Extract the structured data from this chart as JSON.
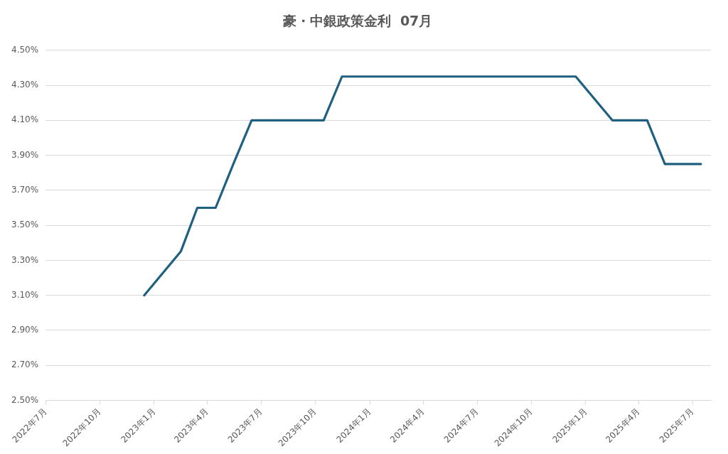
{
  "chart_data": {
    "type": "line",
    "title": "豪・中銀政策金利  07月",
    "x": [
      "2022-12-15",
      "2023-02-15",
      "2023-03-15",
      "2023-04-15",
      "2023-05-15",
      "2023-06-15",
      "2023-10-15",
      "2023-11-15",
      "2024-12-15",
      "2025-02-15",
      "2025-04-15",
      "2025-05-15",
      "2025-07-15"
    ],
    "series": [
      {
        "color": "#1f5f80",
        "values": [
          3.1,
          3.35,
          3.6,
          3.6,
          3.85,
          4.1,
          4.1,
          4.35,
          4.35,
          4.1,
          4.1,
          3.85,
          3.85
        ]
      }
    ],
    "xlim": [
      "2022-07",
      "2025-08"
    ],
    "xticks": [
      {
        "value": "2022-07",
        "label": "2022年7月"
      },
      {
        "value": "2022-10",
        "label": "2022年10月"
      },
      {
        "value": "2023-01",
        "label": "2023年1月"
      },
      {
        "value": "2023-04",
        "label": "2023年4月"
      },
      {
        "value": "2023-07",
        "label": "2023年7月"
      },
      {
        "value": "2023-10",
        "label": "2023年10月"
      },
      {
        "value": "2024-01",
        "label": "2024年1月"
      },
      {
        "value": "2024-04",
        "label": "2024年4月"
      },
      {
        "value": "2024-07",
        "label": "2024年7月"
      },
      {
        "value": "2024-10",
        "label": "2024年10月"
      },
      {
        "value": "2025-01",
        "label": "2025年1月"
      },
      {
        "value": "2025-04",
        "label": "2025年4月"
      },
      {
        "value": "2025-07",
        "label": "2025年7月"
      }
    ],
    "ylim": [
      2.5,
      4.5
    ],
    "yticks": [
      {
        "value": 2.5,
        "label": "2.50%"
      },
      {
        "value": 2.7,
        "label": "2.70%"
      },
      {
        "value": 2.9,
        "label": "2.90%"
      },
      {
        "value": 3.1,
        "label": "3.10%"
      },
      {
        "value": 3.3,
        "label": "3.30%"
      },
      {
        "value": 3.5,
        "label": "3.50%"
      },
      {
        "value": 3.7,
        "label": "3.70%"
      },
      {
        "value": 3.9,
        "label": "3.90%"
      },
      {
        "value": 4.1,
        "label": "4.10%"
      },
      {
        "value": 4.3,
        "label": "4.30%"
      },
      {
        "value": 4.5,
        "label": "4.50%"
      }
    ],
    "grid": "y",
    "legend": false,
    "marker": "none",
    "line_style": "solid"
  }
}
